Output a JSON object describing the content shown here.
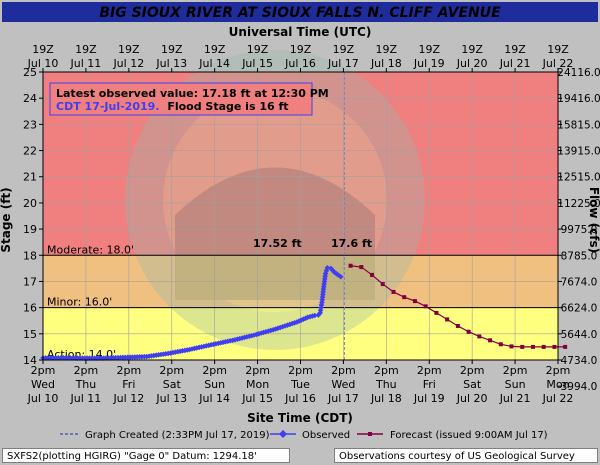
{
  "colors": {
    "page_bg": "#c0c0c0",
    "title_bar": "#1f2d9c",
    "title_text": "#ffffff",
    "zone_major": "#f08080",
    "zone_moderate": "#f0c080",
    "zone_minor": "#ffff80",
    "zone_normal": "#ffffff",
    "observed": "#3f3ff0",
    "forecast": "#800040",
    "grid": "#a0a0a0",
    "now_line": "#8080c0"
  },
  "icons": {
    "legend_observed": "diamond-marker-icon",
    "legend_forecast": "square-marker-icon"
  },
  "chart_data": {
    "type": "line",
    "title": "BIG SIOUX RIVER AT SIOUX FALLS N. CLIFF AVENUE",
    "top_axis_label": "Universal Time (UTC)",
    "xlabel": "Site Time (CDT)",
    "ylabel": "Stage (ft)",
    "ylabel_right": "Flow (cfs)",
    "ylim": [
      14,
      25
    ],
    "yticks": [
      14,
      15,
      16,
      17,
      18,
      19,
      20,
      21,
      22,
      23,
      24,
      25
    ],
    "flow_ticks": [
      "3994.0",
      "4734.0",
      "5644.0",
      "6624.0",
      "7674.0",
      "8785.0",
      "9975.0",
      "11225.0",
      "12515.0",
      "13915.0",
      "15815.0",
      "19416.0",
      "24116.0"
    ],
    "flow_tick_stages": [
      13,
      14,
      15,
      16,
      17,
      18,
      19,
      20,
      21,
      22,
      23,
      24,
      25
    ],
    "xlim": [
      "2019-07-10 14:00",
      "2019-07-22 14:00"
    ],
    "x_ticks_cdt": [
      [
        "2pm",
        "Wed",
        "Jul 10"
      ],
      [
        "2pm",
        "Thu",
        "Jul 11"
      ],
      [
        "2pm",
        "Fri",
        "Jul 12"
      ],
      [
        "2pm",
        "Sat",
        "Jul 13"
      ],
      [
        "2pm",
        "Sun",
        "Jul 14"
      ],
      [
        "2pm",
        "Mon",
        "Jul 15"
      ],
      [
        "2pm",
        "Tue",
        "Jul 16"
      ],
      [
        "2pm",
        "Wed",
        "Jul 17"
      ],
      [
        "2pm",
        "Thu",
        "Jul 18"
      ],
      [
        "2pm",
        "Fri",
        "Jul 19"
      ],
      [
        "2pm",
        "Sat",
        "Jul 20"
      ],
      [
        "2pm",
        "Sun",
        "Jul 21"
      ],
      [
        "2pm",
        "Mon",
        "Jul 22"
      ]
    ],
    "x_ticks_utc": [
      [
        "19Z",
        "Jul 10"
      ],
      [
        "19Z",
        "Jul 11"
      ],
      [
        "19Z",
        "Jul 12"
      ],
      [
        "19Z",
        "Jul 13"
      ],
      [
        "19Z",
        "Jul 14"
      ],
      [
        "19Z",
        "Jul 15"
      ],
      [
        "19Z",
        "Jul 16"
      ],
      [
        "19Z",
        "Jul 17"
      ],
      [
        "19Z",
        "Jul 18"
      ],
      [
        "19Z",
        "Jul 19"
      ],
      [
        "19Z",
        "Jul 20"
      ],
      [
        "19Z",
        "Jul 21"
      ],
      [
        "19Z",
        "Jul 22"
      ]
    ],
    "flood_categories": [
      {
        "label": "Action: 14.0'",
        "stage": 14.0
      },
      {
        "label": "Minor: 16.0'",
        "stage": 16.0
      },
      {
        "label": "Moderate: 18.0'",
        "stage": 18.0
      }
    ],
    "graph_created": "2019-07-17 14:33",
    "annotations": [
      {
        "text": "17.52 ft",
        "x": "2019-07-17 00:00",
        "y": 17.52
      },
      {
        "text": "17.6 ft",
        "x": "2019-07-17 07:00",
        "y": 17.6
      }
    ],
    "note": {
      "line1": "Latest observed value: 17.18 ft at 12:30 PM",
      "line2a": "CDT 17-Jul-2019.",
      "line2b": "Flood Stage is 16 ft"
    },
    "series": [
      {
        "name": "Observed",
        "points": [
          [
            "2019-07-10 14:00",
            14.08
          ],
          [
            "2019-07-11 00:00",
            14.08
          ],
          [
            "2019-07-11 12:00",
            14.07
          ],
          [
            "2019-07-12 00:00",
            14.07
          ],
          [
            "2019-07-12 12:00",
            14.1
          ],
          [
            "2019-07-13 00:00",
            14.13
          ],
          [
            "2019-07-13 12:00",
            14.25
          ],
          [
            "2019-07-14 00:00",
            14.4
          ],
          [
            "2019-07-14 12:00",
            14.58
          ],
          [
            "2019-07-15 00:00",
            14.75
          ],
          [
            "2019-07-15 12:00",
            14.95
          ],
          [
            "2019-07-16 00:00",
            15.18
          ],
          [
            "2019-07-16 12:00",
            15.45
          ],
          [
            "2019-07-16 18:00",
            15.63
          ],
          [
            "2019-07-16 22:00",
            15.7
          ],
          [
            "2019-07-17 00:00",
            15.72
          ],
          [
            "2019-07-17 01:00",
            15.8
          ],
          [
            "2019-07-17 02:00",
            16.2
          ],
          [
            "2019-07-17 03:00",
            16.8
          ],
          [
            "2019-07-17 04:00",
            17.3
          ],
          [
            "2019-07-17 05:00",
            17.52
          ],
          [
            "2019-07-17 07:00",
            17.5
          ],
          [
            "2019-07-17 09:00",
            17.35
          ],
          [
            "2019-07-17 12:30",
            17.18
          ]
        ]
      },
      {
        "name": "Forecast (issued 9:00AM Jul 17)",
        "points": [
          [
            "2019-07-17 18:00",
            17.6
          ],
          [
            "2019-07-18 00:00",
            17.55
          ],
          [
            "2019-07-18 06:00",
            17.25
          ],
          [
            "2019-07-18 12:00",
            16.9
          ],
          [
            "2019-07-18 18:00",
            16.6
          ],
          [
            "2019-07-19 00:00",
            16.4
          ],
          [
            "2019-07-19 06:00",
            16.25
          ],
          [
            "2019-07-19 12:00",
            16.05
          ],
          [
            "2019-07-19 18:00",
            15.8
          ],
          [
            "2019-07-20 00:00",
            15.55
          ],
          [
            "2019-07-20 06:00",
            15.3
          ],
          [
            "2019-07-20 12:00",
            15.08
          ],
          [
            "2019-07-20 18:00",
            14.9
          ],
          [
            "2019-07-21 00:00",
            14.75
          ],
          [
            "2019-07-21 06:00",
            14.6
          ],
          [
            "2019-07-21 12:00",
            14.52
          ],
          [
            "2019-07-21 18:00",
            14.5
          ],
          [
            "2019-07-22 00:00",
            14.5
          ],
          [
            "2019-07-22 06:00",
            14.5
          ],
          [
            "2019-07-22 12:00",
            14.5
          ],
          [
            "2019-07-22 18:00",
            14.5
          ]
        ]
      }
    ],
    "legend": {
      "created": "Graph Created (2:33PM Jul 17, 2019)",
      "observed": "Observed",
      "forecast": "Forecast (issued 9:00AM Jul 17)"
    }
  },
  "footer": {
    "left": "SXFS2(plotting HGIRG) \"Gage 0\" Datum: 1294.18'",
    "right": "Observations courtesy of US Geological Survey"
  }
}
